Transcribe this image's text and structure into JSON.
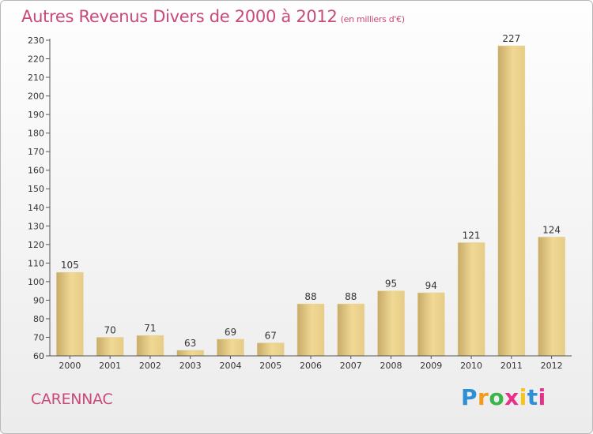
{
  "chart_data": {
    "type": "bar",
    "title": "Autres Revenus Divers de 2000 à 2012",
    "unit": "(en milliers d'€)",
    "categories": [
      "2000",
      "2001",
      "2002",
      "2003",
      "2004",
      "2005",
      "2006",
      "2007",
      "2008",
      "2009",
      "2010",
      "2011",
      "2012"
    ],
    "values": [
      105,
      70,
      71,
      63,
      69,
      67,
      88,
      88,
      95,
      94,
      121,
      227,
      124
    ],
    "xlabel": "",
    "ylabel": "",
    "ylim": [
      60,
      230
    ],
    "yticks": [
      60,
      70,
      80,
      90,
      100,
      110,
      120,
      130,
      140,
      150,
      160,
      170,
      180,
      190,
      200,
      210,
      220,
      230
    ],
    "grid": false,
    "legend": "none",
    "colors": {
      "bar_light": "#f6e2a2",
      "bar_dark": "#c8ab68",
      "title": "#c8497a",
      "axis": "#555555"
    }
  },
  "place": "CARENNAC",
  "logo": {
    "letters": [
      "P",
      "r",
      "o",
      "x",
      "i",
      "t",
      "i"
    ],
    "colors": [
      "#2f8fd6",
      "#f29a1a",
      "#3bb44a",
      "#e8308a",
      "#f5c518",
      "#2f8fd6",
      "#e8308a"
    ]
  }
}
